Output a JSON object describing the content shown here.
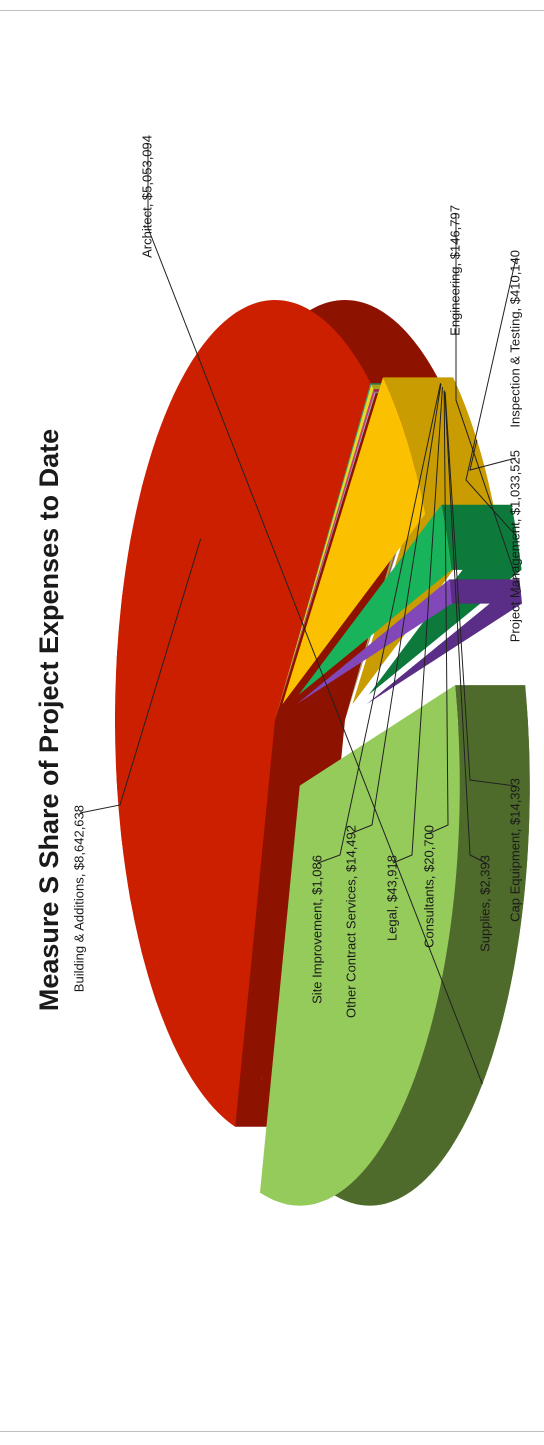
{
  "chart_data": {
    "type": "pie",
    "title": "Measure S Share of Project Expenses to Date",
    "orientation": "rotated-90-ccw",
    "style": "3d-exploded",
    "slices": [
      {
        "label": "Building & Additions",
        "value": 8642638,
        "display": "Building & Additions, $8,642,638",
        "color": "#cc1f00",
        "side_color": "#8e1200"
      },
      {
        "label": "Site Improvement",
        "value": 1086,
        "display": "Site Improvement, $1,086",
        "color": "#3fa7c9",
        "side_color": "#2a7892"
      },
      {
        "label": "Other Contract Services",
        "value": 14492,
        "display": "Other Contract Services, $14,492",
        "color": "#3aa876",
        "side_color": "#26774f"
      },
      {
        "label": "Legal",
        "value": 43918,
        "display": "Legal, $43,918",
        "color": "#e2d92a",
        "side_color": "#aaa21c"
      },
      {
        "label": "Consultants",
        "value": 20700,
        "display": "Consultants, $20,700",
        "color": "#cf3f7a",
        "side_color": "#942b56"
      },
      {
        "label": "Supplies",
        "value": 2393,
        "display": "Supplies, $2,393",
        "color": "#8c6bb3",
        "side_color": "#634a80"
      },
      {
        "label": "Cap Equipment",
        "value": 14393,
        "display": "Cap Equipment, $14,393",
        "color": "#a3a8b8",
        "side_color": "#767a88"
      },
      {
        "label": "Project Management",
        "value": 1033525,
        "display": "Project Management, $1,033,525",
        "color": "#fbc100",
        "side_color": "#c99c02"
      },
      {
        "label": "Inspection & Testing",
        "value": 410140,
        "display": "Inspection & Testing, $410,140",
        "color": "#19b35c",
        "side_color": "#0d7a3c"
      },
      {
        "label": "Engineering",
        "value": 146797,
        "display": "Engineering, $146,797",
        "color": "#8247b8",
        "side_color": "#5a2e86"
      },
      {
        "label": "Architect",
        "value": 5053094,
        "display": "Architect, $5,053,094",
        "color": "#95cb5b",
        "side_color": "#4f6b2b"
      }
    ]
  }
}
